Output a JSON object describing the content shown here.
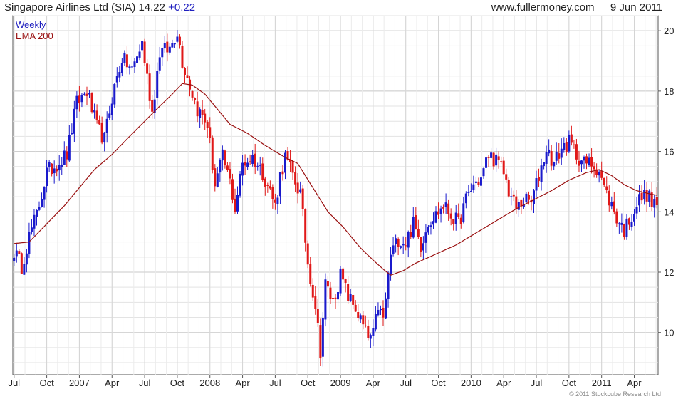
{
  "header": {
    "stock": "Singapore Airlines Ltd (SIA)",
    "price": "14.22",
    "change": "+0.22",
    "site": "www.fullermoney.com",
    "date": "9 Jun 2011"
  },
  "copyright": "© 2011 Stockcube Research Ltd",
  "colors": {
    "up": "#1a1acc",
    "down": "#e01818",
    "ema": "#9a1010",
    "grid": "#d8d8d8",
    "header_blue": "#1f1fbf"
  },
  "chart_data": {
    "type": "candlestick",
    "frequency": "weekly",
    "legend": [
      {
        "label": "Weekly",
        "color": "#1f1fbf"
      },
      {
        "label": "EMA 200",
        "color": "#9a1010"
      }
    ],
    "y_axis": {
      "position": "right",
      "ylim": [
        8.6,
        20.5
      ],
      "ticks": [
        10,
        12,
        14,
        16,
        18,
        20
      ]
    },
    "x_axis": {
      "tick_labels": [
        "Jul",
        "Oct",
        "2007",
        "Apr",
        "Jul",
        "Oct",
        "2008",
        "Apr",
        "Jul",
        "Oct",
        "2009",
        "Apr",
        "Jul",
        "Oct",
        "2010",
        "Apr",
        "Jul",
        "Oct",
        "2011",
        "Apr"
      ],
      "tick_week_index": [
        0,
        13,
        26,
        39,
        52,
        65,
        78,
        91,
        104,
        117,
        130,
        143,
        156,
        169,
        182,
        195,
        208,
        221,
        234,
        247
      ],
      "total_weeks": 257
    },
    "grid": true,
    "close_anchors": [
      {
        "w": 0,
        "v": 12.7
      },
      {
        "w": 3,
        "v": 12.2
      },
      {
        "w": 6,
        "v": 13.2
      },
      {
        "w": 9,
        "v": 13.9
      },
      {
        "w": 13,
        "v": 15.3
      },
      {
        "w": 17,
        "v": 15.6
      },
      {
        "w": 21,
        "v": 15.9
      },
      {
        "w": 25,
        "v": 17.6
      },
      {
        "w": 29,
        "v": 18.0
      },
      {
        "w": 33,
        "v": 16.8
      },
      {
        "w": 36,
        "v": 16.4
      },
      {
        "w": 39,
        "v": 17.8
      },
      {
        "w": 43,
        "v": 19.1
      },
      {
        "w": 47,
        "v": 18.7
      },
      {
        "w": 51,
        "v": 19.6
      },
      {
        "w": 55,
        "v": 17.3
      },
      {
        "w": 58,
        "v": 19.3
      },
      {
        "w": 62,
        "v": 19.4
      },
      {
        "w": 65,
        "v": 20.0
      },
      {
        "w": 67,
        "v": 19.0
      },
      {
        "w": 70,
        "v": 18.2
      },
      {
        "w": 73,
        "v": 17.4
      },
      {
        "w": 77,
        "v": 16.9
      },
      {
        "w": 80,
        "v": 14.9
      },
      {
        "w": 83,
        "v": 15.8
      },
      {
        "w": 86,
        "v": 15.0
      },
      {
        "w": 88,
        "v": 14.1
      },
      {
        "w": 91,
        "v": 15.6
      },
      {
        "w": 95,
        "v": 15.8
      },
      {
        "w": 99,
        "v": 15.3
      },
      {
        "w": 102,
        "v": 14.7
      },
      {
        "w": 104,
        "v": 14.2
      },
      {
        "w": 106,
        "v": 15.2
      },
      {
        "w": 108,
        "v": 15.8
      },
      {
        "w": 111,
        "v": 15.2
      },
      {
        "w": 114,
        "v": 14.6
      },
      {
        "w": 117,
        "v": 12.3
      },
      {
        "w": 120,
        "v": 10.9
      },
      {
        "w": 122,
        "v": 9.4
      },
      {
        "w": 124,
        "v": 11.6
      },
      {
        "w": 127,
        "v": 11.0
      },
      {
        "w": 130,
        "v": 11.9
      },
      {
        "w": 133,
        "v": 11.2
      },
      {
        "w": 136,
        "v": 10.8
      },
      {
        "w": 139,
        "v": 10.2
      },
      {
        "w": 141,
        "v": 9.8
      },
      {
        "w": 143,
        "v": 9.9
      },
      {
        "w": 145,
        "v": 10.9
      },
      {
        "w": 147,
        "v": 10.4
      },
      {
        "w": 150,
        "v": 12.6
      },
      {
        "w": 153,
        "v": 13.1
      },
      {
        "w": 156,
        "v": 13.0
      },
      {
        "w": 159,
        "v": 13.6
      },
      {
        "w": 162,
        "v": 12.9
      },
      {
        "w": 165,
        "v": 13.7
      },
      {
        "w": 168,
        "v": 13.9
      },
      {
        "w": 171,
        "v": 14.2
      },
      {
        "w": 174,
        "v": 13.9
      },
      {
        "w": 177,
        "v": 13.6
      },
      {
        "w": 180,
        "v": 14.4
      },
      {
        "w": 183,
        "v": 14.9
      },
      {
        "w": 186,
        "v": 15.1
      },
      {
        "w": 189,
        "v": 15.9
      },
      {
        "w": 192,
        "v": 15.7
      },
      {
        "w": 195,
        "v": 15.3
      },
      {
        "w": 197,
        "v": 14.7
      },
      {
        "w": 200,
        "v": 14.1
      },
      {
        "w": 203,
        "v": 14.4
      },
      {
        "w": 206,
        "v": 14.3
      },
      {
        "w": 209,
        "v": 15.2
      },
      {
        "w": 212,
        "v": 16.1
      },
      {
        "w": 215,
        "v": 15.6
      },
      {
        "w": 218,
        "v": 16.1
      },
      {
        "w": 221,
        "v": 16.3
      },
      {
        "w": 224,
        "v": 15.9
      },
      {
        "w": 227,
        "v": 15.6
      },
      {
        "w": 230,
        "v": 15.6
      },
      {
        "w": 233,
        "v": 15.4
      },
      {
        "w": 235,
        "v": 14.8
      },
      {
        "w": 238,
        "v": 14.2
      },
      {
        "w": 240,
        "v": 13.8
      },
      {
        "w": 243,
        "v": 13.4
      },
      {
        "w": 246,
        "v": 13.9
      },
      {
        "w": 249,
        "v": 14.4
      },
      {
        "w": 252,
        "v": 14.6
      },
      {
        "w": 254,
        "v": 14.3
      },
      {
        "w": 256,
        "v": 14.22
      }
    ],
    "ema_anchors": [
      {
        "w": 0,
        "v": 12.95
      },
      {
        "w": 6,
        "v": 13.0
      },
      {
        "w": 13,
        "v": 13.6
      },
      {
        "w": 20,
        "v": 14.2
      },
      {
        "w": 26,
        "v": 14.8
      },
      {
        "w": 32,
        "v": 15.4
      },
      {
        "w": 39,
        "v": 15.9
      },
      {
        "w": 46,
        "v": 16.5
      },
      {
        "w": 52,
        "v": 17.0
      },
      {
        "w": 58,
        "v": 17.5
      },
      {
        "w": 63,
        "v": 17.9
      },
      {
        "w": 67,
        "v": 18.25
      },
      {
        "w": 71,
        "v": 18.2
      },
      {
        "w": 76,
        "v": 17.9
      },
      {
        "w": 81,
        "v": 17.4
      },
      {
        "w": 86,
        "v": 16.9
      },
      {
        "w": 93,
        "v": 16.6
      },
      {
        "w": 100,
        "v": 16.2
      },
      {
        "w": 108,
        "v": 15.8
      },
      {
        "w": 113,
        "v": 15.6
      },
      {
        "w": 119,
        "v": 14.8
      },
      {
        "w": 125,
        "v": 14.0
      },
      {
        "w": 131,
        "v": 13.5
      },
      {
        "w": 138,
        "v": 12.8
      },
      {
        "w": 143,
        "v": 12.4
      },
      {
        "w": 147,
        "v": 12.1
      },
      {
        "w": 150,
        "v": 11.9
      },
      {
        "w": 155,
        "v": 12.05
      },
      {
        "w": 160,
        "v": 12.3
      },
      {
        "w": 168,
        "v": 12.6
      },
      {
        "w": 176,
        "v": 12.9
      },
      {
        "w": 184,
        "v": 13.3
      },
      {
        "w": 192,
        "v": 13.7
      },
      {
        "w": 200,
        "v": 14.1
      },
      {
        "w": 207,
        "v": 14.4
      },
      {
        "w": 214,
        "v": 14.7
      },
      {
        "w": 221,
        "v": 15.05
      },
      {
        "w": 228,
        "v": 15.3
      },
      {
        "w": 233,
        "v": 15.4
      },
      {
        "w": 238,
        "v": 15.2
      },
      {
        "w": 243,
        "v": 14.9
      },
      {
        "w": 248,
        "v": 14.7
      },
      {
        "w": 253,
        "v": 14.6
      },
      {
        "w": 256,
        "v": 14.55
      }
    ]
  }
}
